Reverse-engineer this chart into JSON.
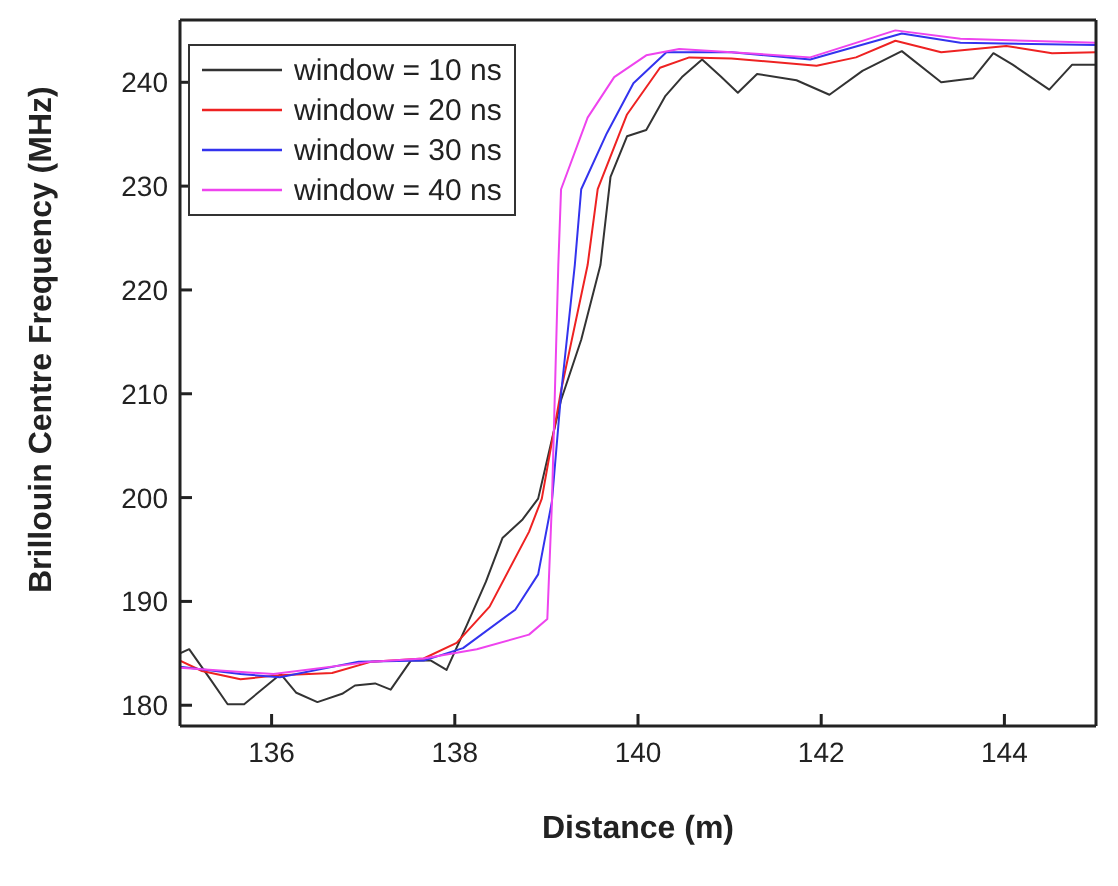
{
  "chart_data": {
    "type": "line",
    "xlabel": "Distance (m)",
    "ylabel": "Brillouin Centre Frequency (MHz)",
    "xlim": [
      135,
      145
    ],
    "xticks": [
      136,
      138,
      140,
      142,
      144
    ],
    "ylim": [
      178,
      246
    ],
    "yticks": [
      180,
      190,
      200,
      210,
      220,
      230,
      240
    ],
    "grid": false,
    "legend": "top left",
    "marker": "none",
    "line_style": "solid",
    "series": [
      {
        "name": "window = 10 ns",
        "color": "#333333",
        "x": [
          135,
          135.1,
          135.34,
          135.52,
          135.7,
          136.1,
          136.27,
          136.5,
          136.77,
          136.91,
          137.13,
          137.3,
          137.52,
          137.74,
          137.91,
          138.13,
          138.34,
          138.52,
          138.74,
          138.91,
          139.16,
          139.38,
          139.59,
          139.7,
          139.88,
          140.09,
          140.3,
          140.48,
          140.7,
          140.91,
          141.09,
          141.3,
          141.73,
          142.09,
          142.45,
          142.88,
          143.31,
          143.66,
          143.88,
          144.09,
          144.49,
          144.74,
          145
        ],
        "values": [
          185,
          185.4,
          182.4,
          180.1,
          180.1,
          183,
          181.2,
          180.3,
          181.1,
          181.9,
          182.1,
          181.5,
          184.3,
          184.3,
          183.4,
          187.7,
          191.9,
          196.1,
          197.9,
          199.9,
          209.4,
          215.2,
          222.4,
          230.9,
          234.8,
          235.4,
          238.7,
          240.5,
          242.2,
          240.5,
          239,
          240.8,
          240.2,
          238.8,
          241.1,
          243,
          240,
          240.4,
          242.8,
          241.7,
          239.3,
          241.7,
          241.7
        ]
      },
      {
        "name": "window = 20 ns",
        "color": "#ee2222",
        "x": [
          135,
          135.24,
          135.66,
          136.09,
          136.66,
          137.09,
          137.66,
          138.02,
          138.38,
          138.81,
          138.95,
          139.16,
          139.45,
          139.56,
          139.88,
          140.24,
          140.56,
          141.02,
          141.95,
          142.38,
          142.81,
          143.31,
          144.02,
          144.52,
          145
        ],
        "values": [
          184.3,
          183.3,
          182.5,
          182.9,
          183.1,
          184.2,
          184.5,
          186,
          189.5,
          196.7,
          199.9,
          210.3,
          222.4,
          229.7,
          236.9,
          241.4,
          242.4,
          242.3,
          241.6,
          242.4,
          244,
          242.9,
          243.5,
          242.8,
          242.9
        ]
      },
      {
        "name": "window = 30 ns",
        "color": "#3333ee",
        "x": [
          135,
          135.66,
          136.09,
          136.95,
          137.66,
          138.09,
          138.66,
          138.91,
          139.06,
          139.16,
          139.31,
          139.38,
          139.66,
          139.95,
          140.31,
          141.02,
          141.88,
          142.88,
          143.52,
          145
        ],
        "values": [
          183.7,
          183,
          182.7,
          184.2,
          184.3,
          185.5,
          189.2,
          192.6,
          199.6,
          210,
          222.4,
          229.7,
          235.1,
          239.9,
          242.9,
          242.9,
          242.2,
          244.7,
          243.8,
          243.6
        ]
      },
      {
        "name": "window = 40 ns",
        "color": "#ee44ee",
        "x": [
          135,
          136.02,
          137.09,
          137.66,
          138.24,
          138.81,
          139.01,
          139.06,
          139.13,
          139.16,
          139.45,
          139.74,
          140.09,
          140.45,
          141.02,
          141.88,
          142.81,
          143.52,
          145
        ],
        "values": [
          183.6,
          183,
          184.2,
          184.5,
          185.4,
          186.8,
          188.3,
          199.4,
          222.4,
          229.7,
          236.6,
          240.5,
          242.6,
          243.2,
          242.9,
          242.4,
          245,
          244.2,
          243.8
        ]
      }
    ]
  }
}
